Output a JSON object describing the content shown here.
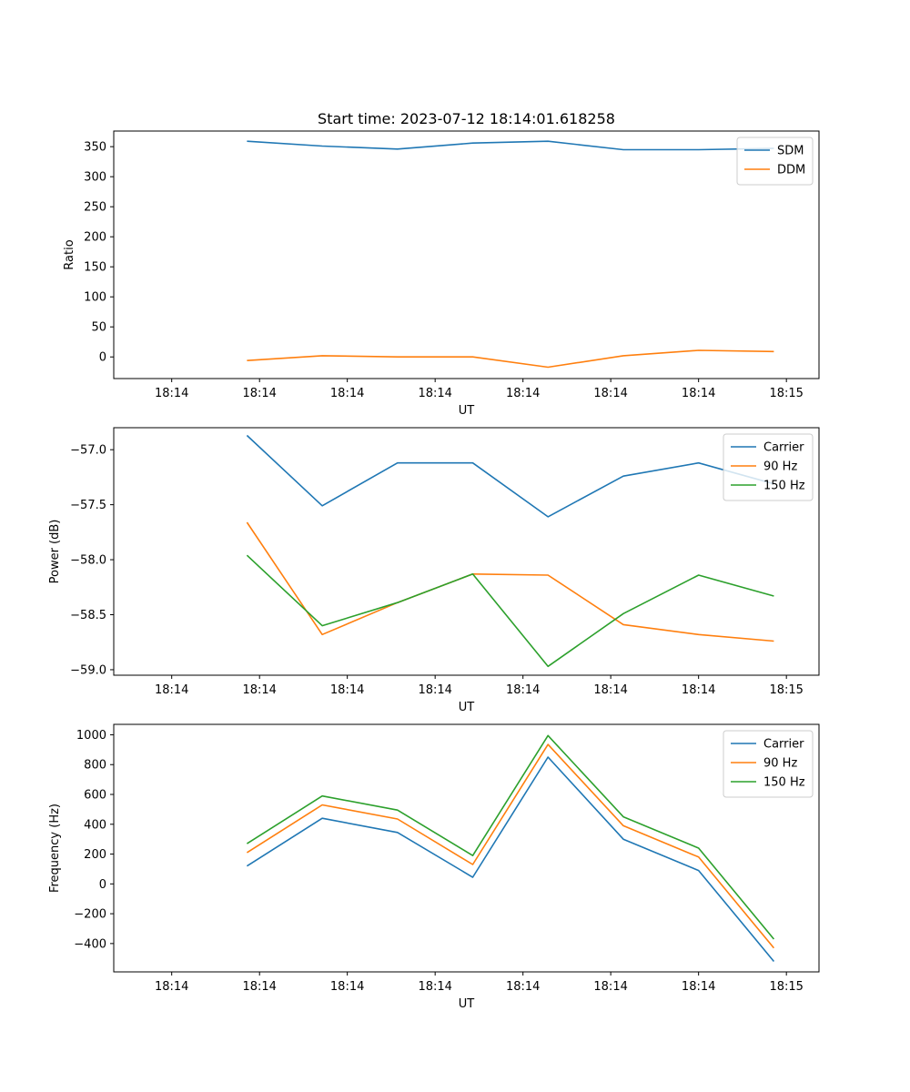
{
  "chart_data": [
    {
      "type": "line",
      "title": "Start time: 2023-07-12 18:14:01.618258",
      "xlabel": "UT",
      "ylabel": "Ratio",
      "x_tick_labels": [
        "18:14",
        "18:14",
        "18:14",
        "18:14",
        "18:14",
        "18:14",
        "18:14",
        "18:15"
      ],
      "x": [
        1,
        2,
        3,
        4,
        5,
        6,
        7,
        8
      ],
      "xlim": [
        -0.77,
        8.6
      ],
      "ylim": [
        -36,
        376
      ],
      "yticks": [
        0,
        50,
        100,
        150,
        200,
        250,
        300,
        350
      ],
      "y_tick_labels": [
        "0",
        "50",
        "100",
        "150",
        "200",
        "250",
        "300",
        "350"
      ],
      "legend_position": "top-right",
      "series": [
        {
          "name": "SDM",
          "color": "#1f77b4",
          "values": [
            359,
            351,
            346,
            356,
            359,
            345,
            345,
            347
          ]
        },
        {
          "name": "DDM",
          "color": "#ff7f0e",
          "values": [
            -6,
            2,
            0,
            0,
            -17,
            2,
            11,
            9
          ]
        }
      ]
    },
    {
      "type": "line",
      "title": "",
      "xlabel": "UT",
      "ylabel": "Power (dB)",
      "x_tick_labels": [
        "18:14",
        "18:14",
        "18:14",
        "18:14",
        "18:14",
        "18:14",
        "18:14",
        "18:15"
      ],
      "x": [
        1,
        2,
        3,
        4,
        5,
        6,
        7,
        8
      ],
      "xlim": [
        -0.77,
        8.6
      ],
      "ylim": [
        -59.05,
        -56.8
      ],
      "yticks": [
        -59.0,
        -58.5,
        -58.0,
        -57.5,
        -57.0
      ],
      "y_tick_labels": [
        "−59.0",
        "−58.5",
        "−58.0",
        "−57.5",
        "−57.0"
      ],
      "legend_position": "top-right",
      "series": [
        {
          "name": "Carrier",
          "color": "#1f77b4",
          "values": [
            -56.87,
            -57.51,
            -57.12,
            -57.12,
            -57.61,
            -57.24,
            -57.12,
            -57.31
          ]
        },
        {
          "name": "90 Hz",
          "color": "#ff7f0e",
          "values": [
            -57.66,
            -58.68,
            -58.39,
            -58.13,
            -58.14,
            -58.59,
            -58.68,
            -58.74
          ]
        },
        {
          "name": "150 Hz",
          "color": "#2ca02c",
          "values": [
            -57.96,
            -58.6,
            -58.39,
            -58.13,
            -58.97,
            -58.49,
            -58.14,
            -58.33
          ]
        }
      ]
    },
    {
      "type": "line",
      "title": "",
      "xlabel": "UT",
      "ylabel": "Frequency (Hz)",
      "x_tick_labels": [
        "18:14",
        "18:14",
        "18:14",
        "18:14",
        "18:14",
        "18:14",
        "18:14",
        "18:15"
      ],
      "x": [
        1,
        2,
        3,
        4,
        5,
        6,
        7,
        8
      ],
      "xlim": [
        -0.77,
        8.6
      ],
      "ylim": [
        -590,
        1070
      ],
      "yticks": [
        -400,
        -200,
        0,
        200,
        400,
        600,
        800,
        1000
      ],
      "y_tick_labels": [
        "−400",
        "−200",
        "0",
        "200",
        "400",
        "600",
        "800",
        "1000"
      ],
      "legend_position": "top-right",
      "series": [
        {
          "name": "Carrier",
          "color": "#1f77b4",
          "values": [
            120,
            440,
            345,
            45,
            850,
            300,
            90,
            -520
          ]
        },
        {
          "name": "90 Hz",
          "color": "#ff7f0e",
          "values": [
            210,
            530,
            435,
            130,
            935,
            390,
            180,
            -430
          ]
        },
        {
          "name": "150 Hz",
          "color": "#2ca02c",
          "values": [
            270,
            590,
            495,
            190,
            995,
            450,
            240,
            -370
          ]
        }
      ]
    }
  ]
}
